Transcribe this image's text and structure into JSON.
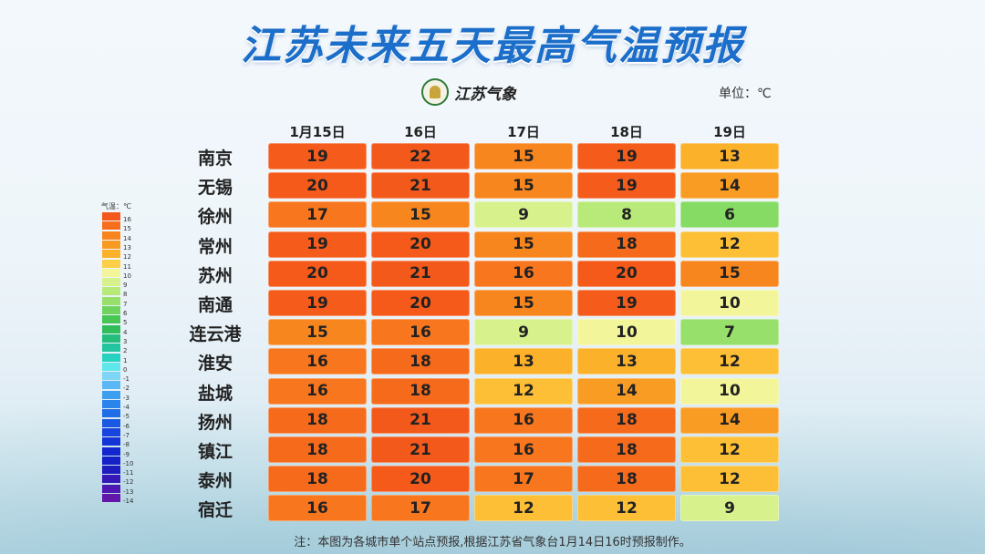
{
  "title": "江苏未来五天最高气温预报",
  "logo_text": "江苏气象",
  "unit": "单位：℃",
  "columns": [
    "1月15日",
    "16日",
    "17日",
    "18日",
    "19日"
  ],
  "rows": [
    {
      "city": "南京",
      "values": [
        19,
        22,
        15,
        19,
        13
      ]
    },
    {
      "city": "无锡",
      "values": [
        20,
        21,
        15,
        19,
        14
      ]
    },
    {
      "city": "徐州",
      "values": [
        17,
        15,
        9,
        8,
        6
      ]
    },
    {
      "city": "常州",
      "values": [
        19,
        20,
        15,
        18,
        12
      ]
    },
    {
      "city": "苏州",
      "values": [
        20,
        21,
        16,
        20,
        15
      ]
    },
    {
      "city": "南通",
      "values": [
        19,
        20,
        15,
        19,
        10
      ]
    },
    {
      "city": "连云港",
      "values": [
        15,
        16,
        9,
        10,
        7
      ]
    },
    {
      "city": "淮安",
      "values": [
        16,
        18,
        13,
        13,
        12
      ]
    },
    {
      "city": "盐城",
      "values": [
        16,
        18,
        12,
        14,
        10
      ]
    },
    {
      "city": "扬州",
      "values": [
        18,
        21,
        16,
        18,
        14
      ]
    },
    {
      "city": "镇江",
      "values": [
        18,
        21,
        16,
        18,
        12
      ]
    },
    {
      "city": "泰州",
      "values": [
        18,
        20,
        17,
        18,
        12
      ]
    },
    {
      "city": "宿迁",
      "values": [
        16,
        17,
        12,
        12,
        9
      ]
    }
  ],
  "legend": {
    "title": "气温：℃",
    "labels": [
      "16",
      "15",
      "14",
      "13",
      "12",
      "11",
      "10",
      "9",
      "8",
      "7",
      "6",
      "5",
      "4",
      "3",
      "2",
      "1",
      "0",
      "-1",
      "-2",
      "-3",
      "-4",
      "-5",
      "-6",
      "-7",
      "-8",
      "-9",
      "-10",
      "-11",
      "-12",
      "-13",
      "-14"
    ],
    "colors": [
      "#f4591c",
      "#f76e1d",
      "#f8841f",
      "#f99a23",
      "#fbb12a",
      "#fdcf46",
      "#f3f59a",
      "#d7f28d",
      "#b8ea7a",
      "#96e06b",
      "#6fd35e",
      "#48c653",
      "#30bd5a",
      "#25bd7c",
      "#22c59f",
      "#27d1c0",
      "#5fe7ec",
      "#7fd5f5",
      "#5bb8f5",
      "#3c9ff0",
      "#2a85ea",
      "#1f6ee6",
      "#1a58e2",
      "#1744de",
      "#1534d8",
      "#1327d0",
      "#1420c8",
      "#1e1cbf",
      "#3618b8",
      "#4f17b2",
      "#6317aa"
    ]
  },
  "note": "注：本图为各城市单个站点预报,根据江苏省气象台1月14日16时预报制作。"
}
